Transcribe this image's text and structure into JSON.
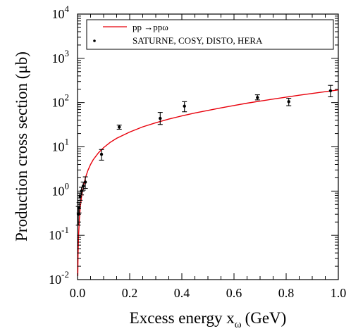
{
  "chart_data": {
    "type": "line",
    "title": "",
    "xlabel": "Excess energy x",
    "xlabel_sub": "ω",
    "xlabel_unit": "(GeV)",
    "ylabel": "Production cross section (μb)",
    "xlim": [
      0.0,
      1.0
    ],
    "ylim": [
      0.01,
      10000
    ],
    "yscale": "log",
    "grid": false,
    "legend_position": "top-right",
    "x_ticks": [
      0.0,
      0.2,
      0.4,
      0.6,
      0.8,
      1.0
    ],
    "x_tick_labels": [
      "0.0",
      "0.2",
      "0.4",
      "0.6",
      "0.8",
      "1.0"
    ],
    "y_ticks": [
      0.01,
      0.1,
      1,
      10,
      100,
      1000,
      10000
    ],
    "y_tick_base": "10",
    "y_tick_exponents": [
      "-2",
      "-1",
      "0",
      "1",
      "2",
      "3",
      "4"
    ],
    "series": [
      {
        "name": "pp →ppω",
        "kind": "line",
        "color": "#e8000b",
        "x": [
          0.001,
          0.002,
          0.004,
          0.007,
          0.01,
          0.015,
          0.02,
          0.03,
          0.04,
          0.05,
          0.06,
          0.08,
          0.1,
          0.125,
          0.15,
          0.2,
          0.25,
          0.3,
          0.35,
          0.4,
          0.45,
          0.5,
          0.55,
          0.6,
          0.65,
          0.7,
          0.75,
          0.8,
          0.85,
          0.9,
          0.95,
          1.0
        ],
        "y": [
          0.012,
          0.035,
          0.1,
          0.23,
          0.4,
          0.72,
          1.1,
          1.98,
          2.95,
          4.0,
          5.1,
          7.3,
          9.6,
          12.6,
          15.6,
          21.6,
          28.3,
          35.0,
          42.5,
          50.0,
          58.3,
          66.6,
          76.0,
          86.0,
          97.0,
          108.0,
          120.0,
          133.0,
          147.0,
          161.0,
          176.0,
          193.0
        ]
      },
      {
        "name": "SATURNE, COSY, DISTO, HERA",
        "kind": "points",
        "color": "#000000",
        "x": [
          0.003,
          0.006,
          0.01,
          0.015,
          0.022,
          0.03,
          0.092,
          0.16,
          0.317,
          0.41,
          0.69,
          0.81,
          0.97
        ],
        "y": [
          0.3,
          0.42,
          0.75,
          1.0,
          1.3,
          1.6,
          6.8,
          28.0,
          44.0,
          83.0,
          130.0,
          105.0,
          185.0
        ],
        "y_low": [
          0.17,
          0.32,
          0.62,
          0.82,
          1.05,
          1.15,
          5.0,
          25.0,
          32.0,
          62.0,
          115.0,
          85.0,
          135.0
        ],
        "y_high": [
          0.45,
          0.55,
          0.9,
          1.22,
          1.6,
          2.1,
          8.7,
          31.0,
          60.0,
          105.0,
          150.0,
          125.0,
          245.0
        ]
      }
    ]
  }
}
